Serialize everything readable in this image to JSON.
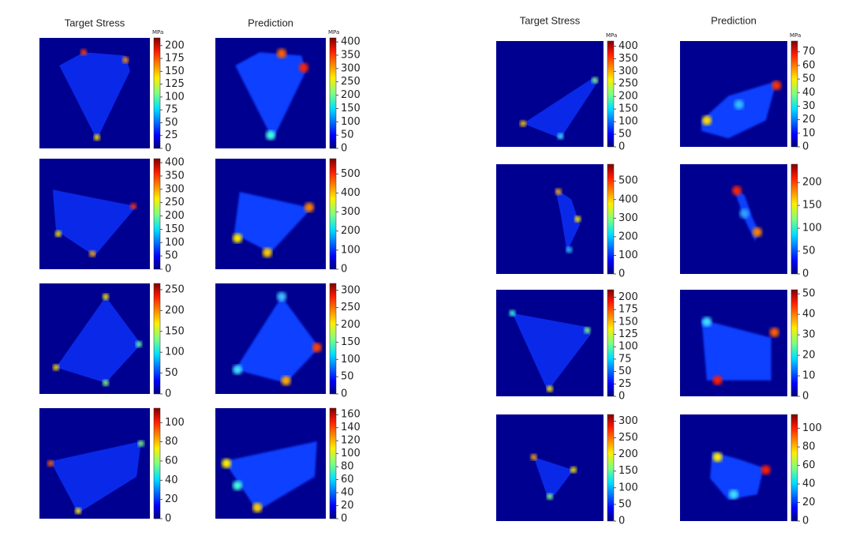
{
  "groups": [
    {
      "titles": {
        "target": "Target Stress",
        "prediction": "Prediction"
      },
      "unit": "MPa",
      "rows": [
        {
          "target": {
            "lim": [
              0,
              215
            ],
            "ticks": [
              0,
              25,
              50,
              75,
              100,
              125,
              150,
              175,
              200
            ]
          },
          "prediction": {
            "lim": [
              0,
              415
            ],
            "ticks": [
              0,
              50,
              100,
              150,
              200,
              250,
              300,
              350,
              400
            ]
          }
        },
        {
          "target": {
            "lim": [
              0,
              415
            ],
            "ticks": [
              0,
              50,
              100,
              150,
              200,
              250,
              300,
              350,
              400
            ]
          },
          "prediction": {
            "lim": [
              0,
              580
            ],
            "ticks": [
              0,
              100,
              200,
              300,
              400,
              500
            ]
          }
        },
        {
          "target": {
            "lim": [
              0,
              265
            ],
            "ticks": [
              0,
              50,
              100,
              150,
              200,
              250
            ]
          },
          "prediction": {
            "lim": [
              0,
              320
            ],
            "ticks": [
              0,
              50,
              100,
              150,
              200,
              250,
              300
            ]
          }
        },
        {
          "target": {
            "lim": [
              0,
              115
            ],
            "ticks": [
              0,
              20,
              40,
              60,
              80,
              100
            ]
          },
          "prediction": {
            "lim": [
              0,
              170
            ],
            "ticks": [
              0,
              20,
              40,
              60,
              80,
              100,
              120,
              140,
              160
            ]
          }
        }
      ]
    },
    {
      "titles": {
        "target": "Target Stress",
        "prediction": "Prediction"
      },
      "unit": "MPa",
      "rows": [
        {
          "target": {
            "lim": [
              0,
              420
            ],
            "ticks": [
              0,
              50,
              100,
              150,
              200,
              250,
              300,
              350,
              400
            ]
          },
          "prediction": {
            "lim": [
              0,
              78
            ],
            "ticks": [
              0,
              10,
              20,
              30,
              40,
              50,
              60,
              70
            ]
          }
        },
        {
          "target": {
            "lim": [
              0,
              590
            ],
            "ticks": [
              0,
              100,
              200,
              300,
              400,
              500
            ]
          },
          "prediction": {
            "lim": [
              0,
              240
            ],
            "ticks": [
              0,
              50,
              100,
              150,
              200
            ]
          }
        },
        {
          "target": {
            "lim": [
              0,
              215
            ],
            "ticks": [
              0,
              25,
              50,
              75,
              100,
              125,
              150,
              175,
              200
            ]
          },
          "prediction": {
            "lim": [
              0,
              52
            ],
            "ticks": [
              0,
              10,
              20,
              30,
              40,
              50
            ]
          }
        },
        {
          "target": {
            "lim": [
              0,
              320
            ],
            "ticks": [
              0,
              50,
              100,
              150,
              200,
              250,
              300
            ]
          },
          "prediction": {
            "lim": [
              0,
              115
            ],
            "ticks": [
              0,
              20,
              40,
              60,
              80,
              100
            ]
          }
        }
      ]
    }
  ]
}
